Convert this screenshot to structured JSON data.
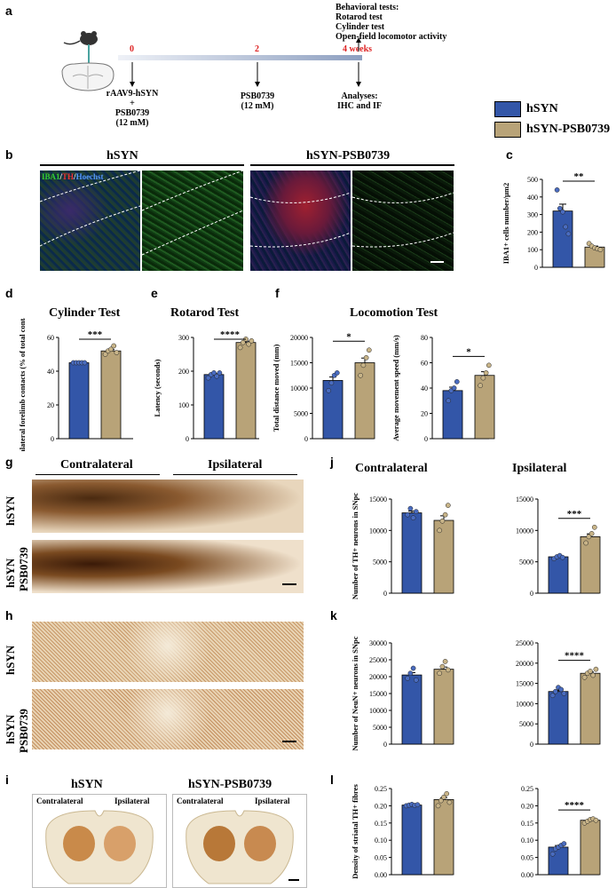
{
  "panels": {
    "a": "a",
    "b": "b",
    "c": "c",
    "d": "d",
    "e": "e",
    "f": "f",
    "g": "g",
    "h": "h",
    "i": "i",
    "j": "j",
    "k": "k",
    "l": "l"
  },
  "timeline": {
    "t0": "0",
    "t2": "2",
    "t4": "4 weeks",
    "injection": [
      "rAAV9-hSYN",
      "+",
      "PSB0739",
      "(12 mM)"
    ],
    "mid": [
      "PSB0739",
      "(12 mM)"
    ],
    "analyses": [
      "Analyses:",
      "IHC and IF"
    ],
    "behavior": [
      "Behavioral tests:",
      "Rotarod test",
      "Cylinder test",
      "Open-field locomotor activity"
    ]
  },
  "legend": [
    {
      "name": "hSYN",
      "color": "#3356a8"
    },
    {
      "name": "hSYN-PSB0739",
      "color": "#b8a378"
    }
  ],
  "colors": {
    "blue": "#3356a8",
    "tan": "#b8a378",
    "dot_blue": "#4a6cc0",
    "dot_tan": "#c8b488"
  },
  "labels_b": {
    "hsyn": "hSYN",
    "psb": "hSYN-PSB0739",
    "stain_iba": "IBA1",
    "stain_th": "TH",
    "stain_h": "Hoechst"
  },
  "titles": {
    "cylinder": "Cylinder Test",
    "rotarod": "Rotarod Test",
    "locomotion": "Locomotion Test",
    "contralateral": "Contralateral",
    "ipsilateral": "Ipsilateral"
  },
  "row_labels": {
    "g1": "hSYN",
    "g2a": "hSYN",
    "g2b": "PSB0739",
    "h1": "hSYN",
    "h2a": "hSYN",
    "h2b": "PSB0739"
  },
  "panel_i": {
    "left_title": "hSYN",
    "right_title": "hSYN-PSB0739",
    "contra": "Contralateral",
    "ipsi": "Ipsilateral"
  },
  "chart_data": [
    {
      "id": "c",
      "type": "bar",
      "ylabel": "IBA1+ cells number/µm2",
      "ylim": [
        0,
        500
      ],
      "yticks": [
        "0",
        "100",
        "200",
        "300",
        "400",
        "500"
      ],
      "categories": [
        "hSYN",
        "hSYN-PSB0739"
      ],
      "values": [
        320,
        115
      ],
      "sig": "**",
      "points": [
        [
          440,
          335,
          315,
          230,
          190
        ],
        [
          135,
          120,
          110,
          105,
          100
        ]
      ]
    },
    {
      "id": "d",
      "type": "bar",
      "ylabel": "Contralateral forelimb contacts (% of total contacts)",
      "ylim": [
        0,
        60
      ],
      "yticks": [
        "0",
        "20",
        "40",
        "60"
      ],
      "categories": [
        "hSYN",
        "hSYN-PSB0739"
      ],
      "values": [
        45,
        52
      ],
      "sig": "***",
      "points": [
        [
          45,
          45,
          45,
          45,
          45
        ],
        [
          50,
          52,
          53,
          55,
          51
        ]
      ]
    },
    {
      "id": "e",
      "type": "bar",
      "ylabel": "Latency (seconds)",
      "ylim": [
        0,
        300
      ],
      "yticks": [
        "0",
        "100",
        "200",
        "300"
      ],
      "categories": [
        "hSYN",
        "hSYN-PSB0739"
      ],
      "values": [
        190,
        285
      ],
      "sig": "****",
      "points": [
        [
          180,
          190,
          195,
          185,
          195
        ],
        [
          270,
          285,
          295,
          280,
          290
        ]
      ]
    },
    {
      "id": "f1",
      "type": "bar",
      "ylabel": "Total distance moved (mm)",
      "ylim": [
        0,
        20000
      ],
      "yticks": [
        "0",
        "5000",
        "10000",
        "15000",
        "20000"
      ],
      "categories": [
        "hSYN",
        "hSYN-PSB0739"
      ],
      "values": [
        11500,
        15000
      ],
      "sig": "*",
      "points": [
        [
          9500,
          11000,
          12500,
          13000
        ],
        [
          12500,
          14500,
          16000,
          17500
        ]
      ]
    },
    {
      "id": "f2",
      "type": "bar",
      "ylabel": "Average movement speed (mm/s)",
      "ylim": [
        0,
        80
      ],
      "yticks": [
        "0",
        "20",
        "40",
        "60",
        "80"
      ],
      "categories": [
        "hSYN",
        "hSYN-PSB0739"
      ],
      "values": [
        38,
        50
      ],
      "sig": "*",
      "points": [
        [
          30,
          38,
          40,
          45
        ],
        [
          42,
          48,
          52,
          58
        ]
      ]
    },
    {
      "id": "j1",
      "type": "bar",
      "ylabel": "Number of TH+ neurons in SNpc",
      "ylim": [
        0,
        15000
      ],
      "yticks": [
        "0",
        "5000",
        "10000",
        "15000"
      ],
      "categories": [
        "hSYN",
        "hSYN-PSB0739"
      ],
      "values": [
        12800,
        11600
      ],
      "sig": "",
      "points": [
        [
          12500,
          13500,
          12000,
          13000
        ],
        [
          10000,
          11500,
          12500,
          14000
        ]
      ]
    },
    {
      "id": "j2",
      "type": "bar",
      "ylabel": "",
      "ylim": [
        0,
        15000
      ],
      "yticks": [
        "0",
        "5000",
        "10000",
        "15000"
      ],
      "categories": [
        "hSYN",
        "hSYN-PSB0739"
      ],
      "values": [
        5800,
        9000
      ],
      "sig": "***",
      "points": [
        [
          5500,
          5800,
          6000,
          5700
        ],
        [
          8000,
          9000,
          9500,
          10500
        ]
      ]
    },
    {
      "id": "k1",
      "type": "bar",
      "ylabel": "Number of NeuN+ neurons in SNpc",
      "ylim": [
        0,
        30000
      ],
      "yticks": [
        "0",
        "5000",
        "10000",
        "15000",
        "20000",
        "25000",
        "30000"
      ],
      "categories": [
        "hSYN",
        "hSYN-PSB0739"
      ],
      "values": [
        20500,
        22200
      ],
      "sig": "",
      "points": [
        [
          19500,
          21000,
          22500,
          19000
        ],
        [
          21000,
          23000,
          24500,
          22000
        ]
      ]
    },
    {
      "id": "k2",
      "type": "bar",
      "ylabel": "",
      "ylim": [
        0,
        25000
      ],
      "yticks": [
        "0",
        "5000",
        "10000",
        "15000",
        "20000",
        "25000"
      ],
      "categories": [
        "hSYN",
        "hSYN-PSB0739"
      ],
      "values": [
        13000,
        17500
      ],
      "sig": "****",
      "points": [
        [
          12000,
          13000,
          14000,
          13500,
          12500
        ],
        [
          16500,
          17500,
          18000,
          17000,
          18500
        ]
      ]
    },
    {
      "id": "l1",
      "type": "bar",
      "ylabel": "Density of striatal TH+ fibres",
      "ylim": [
        0,
        0.25
      ],
      "yticks": [
        "0.00",
        "0.05",
        "0.10",
        "0.15",
        "0.20",
        "0.25"
      ],
      "categories": [
        "hSYN",
        "hSYN-PSB0739"
      ],
      "values": [
        0.202,
        0.218
      ],
      "sig": "",
      "points": [
        [
          0.2,
          0.202,
          0.204,
          0.201,
          0.203
        ],
        [
          0.2,
          0.215,
          0.225,
          0.235,
          0.21
        ]
      ]
    },
    {
      "id": "l2",
      "type": "bar",
      "ylabel": "",
      "ylim": [
        0,
        0.25
      ],
      "yticks": [
        "0.00",
        "0.05",
        "0.10",
        "0.15",
        "0.20",
        "0.25"
      ],
      "categories": [
        "hSYN",
        "hSYN-PSB0739"
      ],
      "values": [
        0.08,
        0.158
      ],
      "sig": "****",
      "points": [
        [
          0.06,
          0.075,
          0.08,
          0.085,
          0.09
        ],
        [
          0.15,
          0.155,
          0.16,
          0.162,
          0.158
        ]
      ]
    }
  ]
}
